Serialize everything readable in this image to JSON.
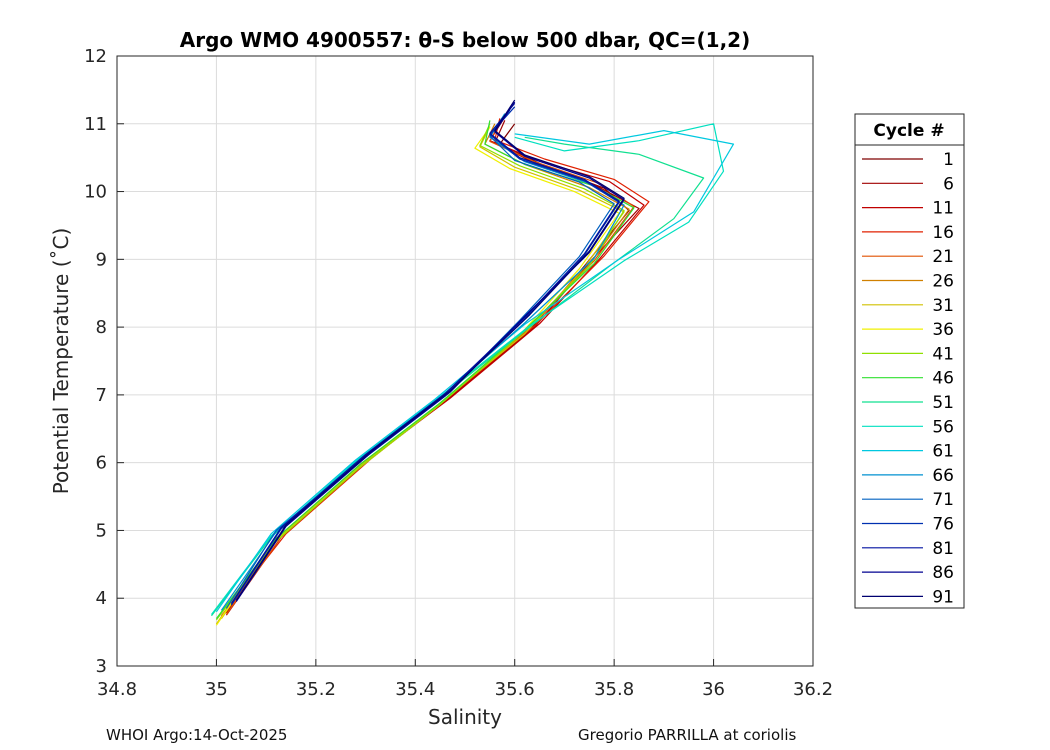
{
  "chart_data": {
    "type": "line",
    "title": "Argo WMO 4900557: θ-S below 500 dbar,  QC=(1,2)",
    "xlabel": "Salinity",
    "ylabel": "Potential Temperature (˚C)",
    "xlim": [
      34.8,
      36.2
    ],
    "ylim": [
      3,
      12
    ],
    "xticks": [
      "34.8",
      "35",
      "35.2",
      "35.4",
      "35.6",
      "35.8",
      "36",
      "36.2"
    ],
    "yticks": [
      "3",
      "4",
      "5",
      "6",
      "7",
      "8",
      "9",
      "10",
      "11",
      "12"
    ],
    "grid": true,
    "legend_title": "Cycle #",
    "legend_position": "right-outside",
    "series": [
      {
        "name": "1",
        "color": "#7f0000",
        "points": [
          [
            35.01,
            3.72
          ],
          [
            35.12,
            4.85
          ],
          [
            35.3,
            6.0
          ],
          [
            35.45,
            6.85
          ],
          [
            35.63,
            7.95
          ],
          [
            35.74,
            8.9
          ],
          [
            35.83,
            9.72
          ],
          [
            35.78,
            10.05
          ],
          [
            35.66,
            10.38
          ],
          [
            35.57,
            10.7
          ],
          [
            35.6,
            11.0
          ]
        ]
      },
      {
        "name": "6",
        "color": "#a00000",
        "points": [
          [
            35.02,
            3.75
          ],
          [
            35.13,
            4.9
          ],
          [
            35.29,
            5.98
          ],
          [
            35.46,
            6.9
          ],
          [
            35.64,
            8.0
          ],
          [
            35.75,
            8.95
          ],
          [
            35.85,
            9.75
          ],
          [
            35.76,
            10.1
          ],
          [
            35.64,
            10.42
          ],
          [
            35.56,
            10.72
          ],
          [
            35.58,
            11.05
          ]
        ]
      },
      {
        "name": "11",
        "color": "#c00000",
        "points": [
          [
            35.02,
            3.78
          ],
          [
            35.12,
            4.88
          ],
          [
            35.3,
            6.02
          ],
          [
            35.47,
            6.95
          ],
          [
            35.65,
            8.05
          ],
          [
            35.77,
            9.0
          ],
          [
            35.86,
            9.8
          ],
          [
            35.79,
            10.15
          ],
          [
            35.65,
            10.45
          ],
          [
            35.55,
            10.75
          ],
          [
            35.58,
            11.1
          ]
        ]
      },
      {
        "name": "16",
        "color": "#e02000",
        "points": [
          [
            35.01,
            3.74
          ],
          [
            35.14,
            4.95
          ],
          [
            35.31,
            6.05
          ],
          [
            35.46,
            6.92
          ],
          [
            35.64,
            8.02
          ],
          [
            35.78,
            9.05
          ],
          [
            35.87,
            9.85
          ],
          [
            35.8,
            10.18
          ],
          [
            35.66,
            10.48
          ],
          [
            35.56,
            10.76
          ],
          [
            35.57,
            11.08
          ]
        ]
      },
      {
        "name": "21",
        "color": "#e05000",
        "points": [
          [
            35.02,
            3.76
          ],
          [
            35.13,
            4.9
          ],
          [
            35.3,
            6.0
          ],
          [
            35.45,
            6.88
          ],
          [
            35.63,
            7.98
          ],
          [
            35.76,
            8.98
          ],
          [
            35.84,
            9.78
          ],
          [
            35.77,
            10.12
          ],
          [
            35.64,
            10.44
          ],
          [
            35.55,
            10.74
          ],
          [
            35.57,
            11.02
          ]
        ]
      },
      {
        "name": "26",
        "color": "#d08000",
        "points": [
          [
            35.01,
            3.7
          ],
          [
            35.12,
            4.86
          ],
          [
            35.29,
            5.96
          ],
          [
            35.45,
            6.86
          ],
          [
            35.62,
            7.94
          ],
          [
            35.75,
            8.92
          ],
          [
            35.83,
            9.74
          ],
          [
            35.75,
            10.06
          ],
          [
            35.62,
            10.4
          ],
          [
            35.54,
            10.7
          ],
          [
            35.56,
            11.0
          ]
        ]
      },
      {
        "name": "31",
        "color": "#d0c000",
        "points": [
          [
            35.0,
            3.62
          ],
          [
            35.11,
            4.8
          ],
          [
            35.28,
            5.9
          ],
          [
            35.44,
            6.82
          ],
          [
            35.62,
            7.9
          ],
          [
            35.74,
            8.88
          ],
          [
            35.82,
            9.7
          ],
          [
            35.73,
            10.02
          ],
          [
            35.6,
            10.36
          ],
          [
            35.53,
            10.66
          ],
          [
            35.55,
            10.96
          ]
        ]
      },
      {
        "name": "36",
        "color": "#f0f000",
        "points": [
          [
            35.0,
            3.6
          ],
          [
            35.11,
            4.78
          ],
          [
            35.28,
            5.88
          ],
          [
            35.44,
            6.8
          ],
          [
            35.61,
            7.88
          ],
          [
            35.73,
            8.86
          ],
          [
            35.81,
            9.68
          ],
          [
            35.72,
            10.0
          ],
          [
            35.59,
            10.34
          ],
          [
            35.52,
            10.64
          ],
          [
            35.55,
            10.95
          ]
        ]
      },
      {
        "name": "41",
        "color": "#90e000",
        "points": [
          [
            35.0,
            3.68
          ],
          [
            35.12,
            4.84
          ],
          [
            35.29,
            5.94
          ],
          [
            35.45,
            6.86
          ],
          [
            35.62,
            7.94
          ],
          [
            35.75,
            8.9
          ],
          [
            35.82,
            9.72
          ],
          [
            35.74,
            10.04
          ],
          [
            35.61,
            10.38
          ],
          [
            35.53,
            10.68
          ],
          [
            35.55,
            11.0
          ]
        ]
      },
      {
        "name": "46",
        "color": "#30e030",
        "points": [
          [
            35.0,
            3.7
          ],
          [
            35.12,
            4.88
          ],
          [
            35.29,
            5.98
          ],
          [
            35.45,
            6.88
          ],
          [
            35.62,
            7.96
          ],
          [
            35.76,
            8.94
          ],
          [
            35.84,
            9.76
          ],
          [
            35.76,
            10.08
          ],
          [
            35.62,
            10.4
          ],
          [
            35.54,
            10.7
          ],
          [
            35.55,
            11.05
          ]
        ]
      },
      {
        "name": "51",
        "color": "#10e090",
        "points": [
          [
            34.99,
            3.74
          ],
          [
            35.11,
            4.9
          ],
          [
            35.28,
            6.0
          ],
          [
            35.44,
            6.9
          ],
          [
            35.63,
            8.0
          ],
          [
            35.8,
            8.95
          ],
          [
            35.92,
            9.6
          ],
          [
            35.98,
            10.2
          ],
          [
            35.85,
            10.55
          ],
          [
            35.7,
            10.7
          ],
          [
            35.62,
            10.8
          ]
        ]
      },
      {
        "name": "56",
        "color": "#00e0c0",
        "points": [
          [
            34.99,
            3.76
          ],
          [
            35.11,
            4.92
          ],
          [
            35.28,
            6.02
          ],
          [
            35.44,
            6.92
          ],
          [
            35.63,
            8.02
          ],
          [
            35.82,
            8.98
          ],
          [
            35.95,
            9.55
          ],
          [
            36.02,
            10.3
          ],
          [
            36.0,
            11.0
          ],
          [
            35.85,
            10.75
          ],
          [
            35.7,
            10.6
          ],
          [
            35.6,
            10.8
          ]
        ]
      },
      {
        "name": "61",
        "color": "#00c8e0",
        "points": [
          [
            35.0,
            3.8
          ],
          [
            35.11,
            4.95
          ],
          [
            35.28,
            6.04
          ],
          [
            35.44,
            6.94
          ],
          [
            35.62,
            8.04
          ],
          [
            35.81,
            9.0
          ],
          [
            35.96,
            9.7
          ],
          [
            36.04,
            10.7
          ],
          [
            35.9,
            10.9
          ],
          [
            35.75,
            10.7
          ],
          [
            35.6,
            10.85
          ]
        ]
      },
      {
        "name": "66",
        "color": "#0090d0",
        "points": [
          [
            35.01,
            3.82
          ],
          [
            35.12,
            4.98
          ],
          [
            35.29,
            6.06
          ],
          [
            35.45,
            6.96
          ],
          [
            35.62,
            8.06
          ],
          [
            35.76,
            9.02
          ],
          [
            35.82,
            9.8
          ],
          [
            35.75,
            10.12
          ],
          [
            35.62,
            10.44
          ],
          [
            35.55,
            10.8
          ],
          [
            35.58,
            11.15
          ]
        ]
      },
      {
        "name": "71",
        "color": "#0060c0",
        "points": [
          [
            35.02,
            3.85
          ],
          [
            35.12,
            5.0
          ],
          [
            35.3,
            6.08
          ],
          [
            35.46,
            6.98
          ],
          [
            35.61,
            8.1
          ],
          [
            35.73,
            9.04
          ],
          [
            35.8,
            9.82
          ],
          [
            35.73,
            10.14
          ],
          [
            35.6,
            10.46
          ],
          [
            35.55,
            10.82
          ],
          [
            35.59,
            11.2
          ]
        ]
      },
      {
        "name": "76",
        "color": "#0030b0",
        "points": [
          [
            35.03,
            3.9
          ],
          [
            35.13,
            5.02
          ],
          [
            35.3,
            6.1
          ],
          [
            35.46,
            7.0
          ],
          [
            35.62,
            8.12
          ],
          [
            35.74,
            9.06
          ],
          [
            35.81,
            9.84
          ],
          [
            35.74,
            10.16
          ],
          [
            35.61,
            10.48
          ],
          [
            35.55,
            10.84
          ],
          [
            35.6,
            11.25
          ]
        ]
      },
      {
        "name": "81",
        "color": "#0010a0",
        "points": [
          [
            35.03,
            3.92
          ],
          [
            35.13,
            5.04
          ],
          [
            35.3,
            6.12
          ],
          [
            35.46,
            7.02
          ],
          [
            35.62,
            8.14
          ],
          [
            35.74,
            9.08
          ],
          [
            35.81,
            9.86
          ],
          [
            35.74,
            10.18
          ],
          [
            35.61,
            10.5
          ],
          [
            35.55,
            10.86
          ],
          [
            35.6,
            11.3
          ]
        ]
      },
      {
        "name": "86",
        "color": "#000090",
        "points": [
          [
            35.04,
            3.95
          ],
          [
            35.14,
            5.06
          ],
          [
            35.31,
            6.14
          ],
          [
            35.47,
            7.04
          ],
          [
            35.62,
            8.16
          ],
          [
            35.75,
            9.1
          ],
          [
            35.82,
            9.88
          ],
          [
            35.75,
            10.2
          ],
          [
            35.62,
            10.52
          ],
          [
            35.56,
            10.88
          ],
          [
            35.6,
            11.32
          ]
        ]
      },
      {
        "name": "91",
        "color": "#000070",
        "points": [
          [
            35.04,
            3.97
          ],
          [
            35.14,
            5.08
          ],
          [
            35.31,
            6.16
          ],
          [
            35.47,
            7.06
          ],
          [
            35.63,
            8.18
          ],
          [
            35.75,
            9.12
          ],
          [
            35.82,
            9.9
          ],
          [
            35.75,
            10.22
          ],
          [
            35.62,
            10.54
          ],
          [
            35.56,
            10.9
          ],
          [
            35.6,
            11.35
          ]
        ]
      }
    ]
  },
  "footer": {
    "left": "WHOI Argo:14-Oct-2025",
    "right": "Gregorio PARRILLA at coriolis"
  }
}
